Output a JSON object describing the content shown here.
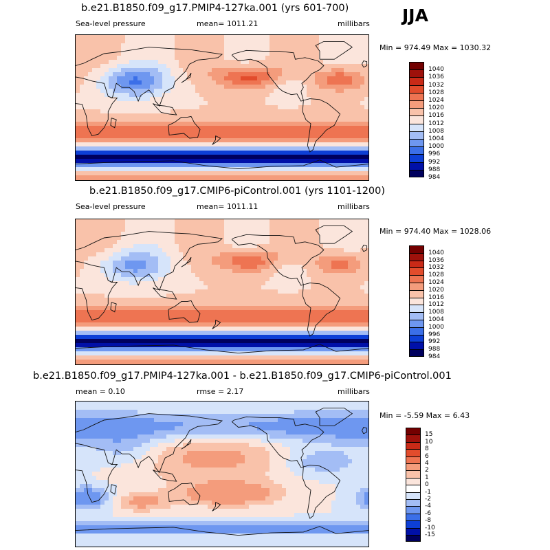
{
  "season": "JJA",
  "colors": {
    "abs": [
      "#00005e",
      "#0010a8",
      "#0d3fd6",
      "#3b6fe8",
      "#6e97f0",
      "#a3bdf5",
      "#d6e4fa",
      "#fbe5dc",
      "#f9c2aa",
      "#f49c7c",
      "#ee7452",
      "#e24c2c",
      "#c92a17",
      "#9e110b",
      "#730000"
    ],
    "diff": [
      "#00005e",
      "#0010a8",
      "#0d3fd6",
      "#3b6fe8",
      "#6e97f0",
      "#a3bdf5",
      "#d6e4fa",
      "#ffffff",
      "#fbe5dc",
      "#f9c2aa",
      "#f49c7c",
      "#ee7452",
      "#e24c2c",
      "#c92a17",
      "#9e110b",
      "#730000"
    ],
    "coast": "#111111"
  },
  "panels": [
    {
      "title": "b.e21.B1850.f09_g17.PMIP4-127ka.001 (yrs 601-700)",
      "left": "Sea-level pressure",
      "center": "mean= 1011.21",
      "right": "millibars",
      "minmax": "Min = 974.49 Max = 1030.32",
      "field": "abs",
      "variant": 1
    },
    {
      "title": "b.e21.B1850.f09_g17.CMIP6-piControl.001 (yrs 1101-1200)",
      "left": "Sea-level pressure",
      "center": "mean= 1011.11",
      "right": "millibars",
      "minmax": "Min = 974.40 Max = 1028.06",
      "field": "abs",
      "variant": 2
    },
    {
      "title": "b.e21.B1850.f09_g17.PMIP4-127ka.001 - b.e21.B1850.f09_g17.CMIP6-piControl.001",
      "left": "mean =  0.10",
      "center": "rmse =  2.17",
      "right": "millibars",
      "minmax": "Min =  -5.59 Max =   6.43",
      "field": "diff",
      "variant": 3
    }
  ],
  "colorbars": {
    "abs": [
      "1040",
      "1036",
      "1032",
      "1028",
      "1024",
      "1020",
      "1016",
      "1012",
      "1008",
      "1004",
      "1000",
      "996",
      "992",
      "988",
      "984"
    ],
    "diff": [
      "15",
      "10",
      "8",
      "6",
      "4",
      "2",
      "1",
      "0",
      "-1",
      "-2",
      "-4",
      "-6",
      "-8",
      "-10",
      "-15"
    ]
  },
  "chart_data": [
    {
      "type": "heatmap",
      "title": "b.e21.B1850.f09_g17.PMIP4-127ka.001 (yrs 601-700)",
      "variable": "Sea-level pressure",
      "units": "millibars",
      "mean": 1011.21,
      "min": 974.49,
      "max": 1030.32,
      "levels": [
        984,
        988,
        992,
        996,
        1000,
        1004,
        1008,
        1012,
        1016,
        1020,
        1024,
        1028,
        1032,
        1036,
        1040
      ]
    },
    {
      "type": "heatmap",
      "title": "b.e21.B1850.f09_g17.CMIP6-piControl.001 (yrs 1101-1200)",
      "variable": "Sea-level pressure",
      "units": "millibars",
      "mean": 1011.11,
      "min": 974.4,
      "max": 1028.06,
      "levels": [
        984,
        988,
        992,
        996,
        1000,
        1004,
        1008,
        1012,
        1016,
        1020,
        1024,
        1028,
        1032,
        1036,
        1040
      ]
    },
    {
      "type": "heatmap",
      "title": "b.e21.B1850.f09_g17.PMIP4-127ka.001 - b.e21.B1850.f09_g17.CMIP6-piControl.001",
      "units": "millibars",
      "mean": 0.1,
      "rmse": 2.17,
      "min": -5.59,
      "max": 6.43,
      "levels": [
        -15,
        -10,
        -8,
        -6,
        -4,
        -2,
        -1,
        0,
        1,
        2,
        4,
        6,
        8,
        10,
        15
      ]
    }
  ]
}
